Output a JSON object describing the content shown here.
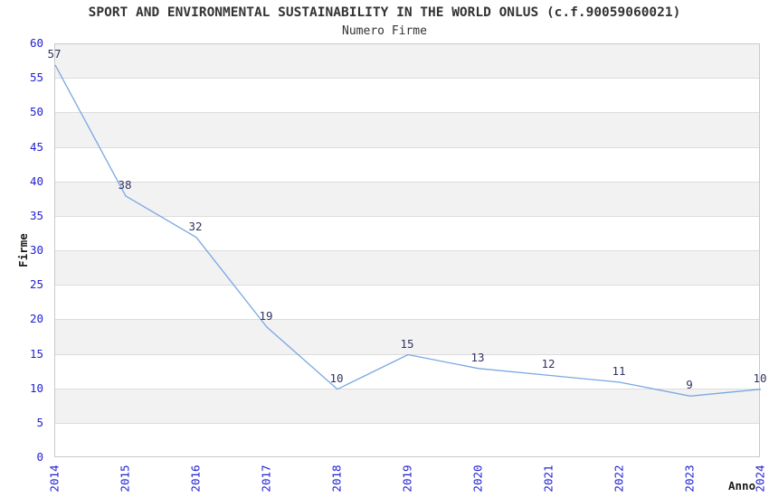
{
  "chart_data": {
    "type": "line",
    "title": "SPORT AND ENVIRONMENTAL SUSTAINABILITY IN THE WORLD ONLUS (c.f.90059060021)",
    "subtitle": "Numero Firme",
    "xlabel": "Anno",
    "ylabel": "Firme",
    "x": [
      2014,
      2015,
      2016,
      2017,
      2018,
      2019,
      2020,
      2021,
      2022,
      2023,
      2024
    ],
    "xtick_labels": [
      "2014",
      "2015",
      "2016",
      "2017",
      "2018",
      "2019",
      "2020",
      "2021",
      "2022",
      "2023",
      "2024"
    ],
    "values": [
      57,
      38,
      32,
      19,
      10,
      15,
      13,
      12,
      11,
      9,
      10
    ],
    "ylim": [
      0,
      60
    ],
    "ytick_step": 5,
    "grid": true,
    "banded_background": true,
    "legend_position": "none",
    "data_labels_shown": true,
    "colors": {
      "line": "#79a8e3",
      "tick_label": "#2121d1",
      "data_label": "#333366",
      "band": "#f2f2f2",
      "gridline": "#dcdcdc",
      "plot_border": "#c9c9c9",
      "title": "#333333",
      "axis_label": "#1a1a1a",
      "background": "#ffffff"
    }
  }
}
